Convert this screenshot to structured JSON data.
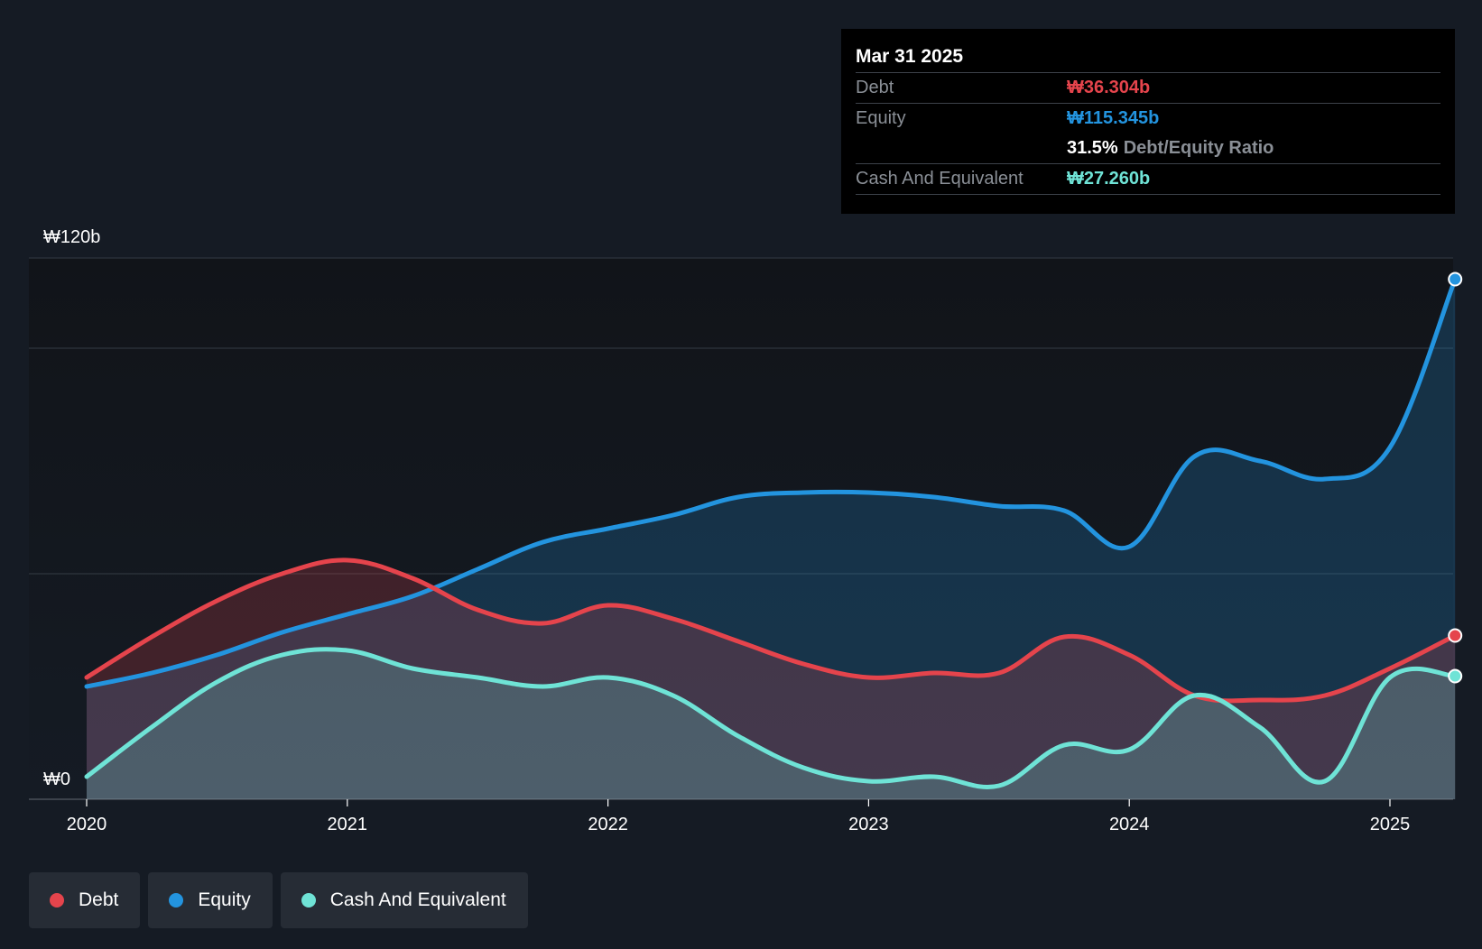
{
  "tooltip": {
    "date": "Mar 31 2025",
    "rows": {
      "debt": {
        "label": "Debt",
        "value": "₩36.304b",
        "color": "#e5444c"
      },
      "equity": {
        "label": "Equity",
        "value": "₩115.345b",
        "color": "#2394df"
      },
      "ratio": {
        "value": "31.5%",
        "label": "Debt/Equity Ratio"
      },
      "cash": {
        "label": "Cash And Equivalent",
        "value": "₩27.260b",
        "color": "#6fe3d6"
      }
    }
  },
  "legend": {
    "debt": {
      "label": "Debt",
      "color": "#e5444c"
    },
    "equity": {
      "label": "Equity",
      "color": "#2394df"
    },
    "cash": {
      "label": "Cash And Equivalent",
      "color": "#6fe3d6"
    }
  },
  "chart_data": {
    "type": "area",
    "title": "",
    "xlabel": "",
    "ylabel": "",
    "y_axis_labels": {
      "top": "₩120b",
      "bottom": "₩0"
    },
    "ylim": [
      0,
      120
    ],
    "xlim": [
      2019.78,
      2025.25
    ],
    "x_ticks": [
      2020,
      2021,
      2022,
      2023,
      2024,
      2025
    ],
    "x_tick_labels": [
      "2020",
      "2021",
      "2022",
      "2023",
      "2024",
      "2025"
    ],
    "grid_values": [
      0,
      50,
      100,
      120
    ],
    "x": [
      2020.0,
      2020.25,
      2020.5,
      2020.75,
      2021.0,
      2021.25,
      2021.5,
      2021.75,
      2022.0,
      2022.25,
      2022.5,
      2022.75,
      2023.0,
      2023.25,
      2023.5,
      2023.75,
      2024.0,
      2024.25,
      2024.5,
      2024.75,
      2025.0,
      2025.25
    ],
    "series": [
      {
        "name": "Debt",
        "color": "#e5444c",
        "values": [
          27,
          36,
          44,
          50,
          53,
          49,
          42,
          39,
          43,
          40,
          35,
          30,
          27,
          28,
          28,
          36,
          32,
          23,
          22,
          23,
          29,
          36.3
        ]
      },
      {
        "name": "Equity",
        "color": "#2394df",
        "values": [
          25,
          28,
          32,
          37,
          41,
          45,
          51,
          57,
          60,
          63,
          67,
          68,
          68,
          67,
          65,
          64,
          56,
          76,
          75,
          71,
          78,
          115.3
        ]
      },
      {
        "name": "Cash And Equivalent",
        "color": "#6fe3d6",
        "values": [
          5,
          16,
          26,
          32,
          33,
          29,
          27,
          25,
          27,
          23,
          14,
          7,
          4,
          5,
          3,
          12,
          11,
          23,
          16,
          4,
          27,
          27.3
        ]
      }
    ]
  }
}
